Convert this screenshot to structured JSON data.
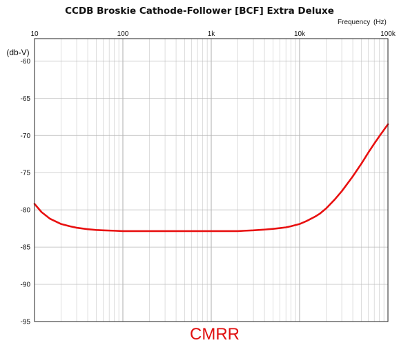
{
  "chart_data": {
    "type": "line",
    "title": "CCDB Broskie Cathode-Follower [BCF] Extra Deluxe",
    "xlabel": "Frequency",
    "xunit": "(Hz)",
    "ylabel": "(db-V)",
    "footer_label": "CMRR",
    "x_scale": "log",
    "xlim": [
      10,
      100000
    ],
    "ylim": [
      -95,
      -57
    ],
    "x_tick_values": [
      10,
      100,
      1000,
      10000,
      100000
    ],
    "x_tick_labels": [
      "10",
      "100",
      "1k",
      "10k",
      "100k"
    ],
    "y_tick_values": [
      -60,
      -65,
      -70,
      -75,
      -80,
      -85,
      -90,
      -95
    ],
    "y_tick_labels": [
      "-60",
      "-65",
      "-70",
      "-75",
      "-80",
      "-85",
      "-90",
      "-95"
    ],
    "grid": true,
    "line_color": "#e81010",
    "series": [
      {
        "x": [
          10,
          12,
          15,
          20,
          25,
          30,
          40,
          50,
          60,
          80,
          100,
          150,
          200,
          300,
          500,
          1000,
          2000,
          2400,
          3000,
          4000,
          5000,
          6000,
          7000,
          8000,
          10000,
          12000,
          15000,
          17000,
          20000,
          25000,
          30000,
          40000,
          50000,
          60000,
          70000,
          80000,
          100000
        ],
        "y": [
          -79.2,
          -80.3,
          -81.2,
          -81.9,
          -82.2,
          -82.4,
          -82.6,
          -82.7,
          -82.75,
          -82.8,
          -82.85,
          -82.85,
          -82.85,
          -82.85,
          -82.85,
          -82.85,
          -82.85,
          -82.8,
          -82.75,
          -82.65,
          -82.55,
          -82.45,
          -82.35,
          -82.2,
          -81.9,
          -81.5,
          -80.9,
          -80.5,
          -79.8,
          -78.6,
          -77.5,
          -75.5,
          -73.8,
          -72.3,
          -71.1,
          -70.1,
          -68.5
        ]
      }
    ]
  }
}
